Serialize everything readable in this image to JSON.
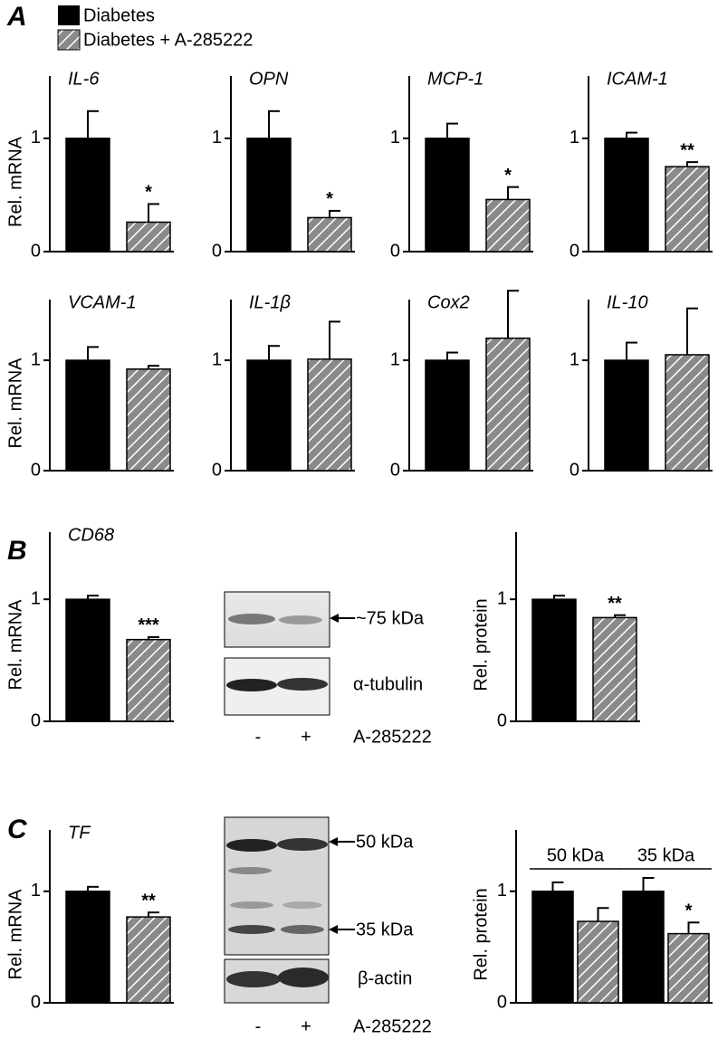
{
  "panel_labels": [
    "A",
    "B",
    "C"
  ],
  "legend": {
    "series": [
      {
        "name": "Diabetes",
        "color": "#000000",
        "hatch": false
      },
      {
        "name": "Diabetes + A-285222",
        "color": "#8a8a8a",
        "hatch": true
      }
    ]
  },
  "blots": [
    {
      "bands": [
        "~75 kDa"
      ],
      "loading": "α-tubulin",
      "lanes": [
        "-",
        "+"
      ],
      "treatment": "A-285222"
    },
    {
      "bands": [
        "50 kDa",
        "35 kDa"
      ],
      "loading": "β-actin",
      "lanes": [
        "-",
        "+"
      ],
      "treatment": "A-285222"
    }
  ],
  "chart_data": [
    {
      "type": "bar",
      "title": "IL-6",
      "ylabel": "Rel. mRNA",
      "values": [
        1,
        0.26
      ],
      "errors": [
        0.24,
        0.16
      ],
      "significance": [
        null,
        "*"
      ],
      "ylim": [
        0,
        1.55
      ],
      "yticks": [
        0,
        1
      ]
    },
    {
      "type": "bar",
      "title": "OPN",
      "values": [
        1,
        0.3
      ],
      "errors": [
        0.24,
        0.06
      ],
      "significance": [
        null,
        "*"
      ],
      "ylim": [
        0,
        1.55
      ],
      "yticks": [
        0,
        1
      ]
    },
    {
      "type": "bar",
      "title": "MCP-1",
      "values": [
        1,
        0.46
      ],
      "errors": [
        0.13,
        0.11
      ],
      "significance": [
        null,
        "*"
      ],
      "ylim": [
        0,
        1.55
      ],
      "yticks": [
        0,
        1
      ]
    },
    {
      "type": "bar",
      "title": "ICAM-1",
      "values": [
        1,
        0.75
      ],
      "errors": [
        0.05,
        0.04
      ],
      "significance": [
        null,
        "**"
      ],
      "ylim": [
        0,
        1.55
      ],
      "yticks": [
        0,
        1
      ]
    },
    {
      "type": "bar",
      "title": "VCAM-1",
      "ylabel": "Rel. mRNA",
      "values": [
        1,
        0.92
      ],
      "errors": [
        0.12,
        0.03
      ],
      "significance": [
        null,
        null
      ],
      "ylim": [
        0,
        1.55
      ],
      "yticks": [
        0,
        1
      ]
    },
    {
      "type": "bar",
      "title": "IL-1β",
      "values": [
        1,
        1.01
      ],
      "errors": [
        0.13,
        0.34
      ],
      "significance": [
        null,
        null
      ],
      "ylim": [
        0,
        1.55
      ],
      "yticks": [
        0,
        1
      ]
    },
    {
      "type": "bar",
      "title": "Cox2",
      "values": [
        1,
        1.2
      ],
      "errors": [
        0.07,
        0.43
      ],
      "significance": [
        null,
        null
      ],
      "ylim": [
        0,
        1.55
      ],
      "yticks": [
        0,
        1
      ]
    },
    {
      "type": "bar",
      "title": "IL-10",
      "values": [
        1,
        1.05
      ],
      "errors": [
        0.16,
        0.42
      ],
      "significance": [
        null,
        null
      ],
      "ylim": [
        0,
        1.55
      ],
      "yticks": [
        0,
        1
      ]
    },
    {
      "type": "bar",
      "title": "CD68",
      "ylabel": "Rel. mRNA",
      "values": [
        1,
        0.67
      ],
      "errors": [
        0.03,
        0.02
      ],
      "significance": [
        null,
        "***"
      ],
      "ylim": [
        0,
        1.55
      ],
      "yticks": [
        0,
        1
      ]
    },
    {
      "type": "bar",
      "ylabel": "Rel. protein",
      "values": [
        1,
        0.85
      ],
      "errors": [
        0.03,
        0.02
      ],
      "significance": [
        null,
        "**"
      ],
      "ylim": [
        0,
        1.55
      ],
      "yticks": [
        0,
        1
      ]
    },
    {
      "type": "bar",
      "title": "TF",
      "ylabel": "Rel. mRNA",
      "values": [
        1,
        0.77
      ],
      "errors": [
        0.04,
        0.04
      ],
      "significance": [
        null,
        "**"
      ],
      "ylim": [
        0,
        1.55
      ],
      "yticks": [
        0,
        1
      ]
    },
    {
      "type": "bar",
      "ylabel": "Rel. protein",
      "groups": [
        "50 kDa",
        "35 kDa"
      ],
      "values": [
        1,
        0.73,
        1,
        0.62
      ],
      "errors": [
        0.08,
        0.12,
        0.12,
        0.1
      ],
      "significance": [
        null,
        null,
        null,
        "*"
      ],
      "ylim": [
        0,
        1.55
      ],
      "yticks": [
        0,
        1
      ]
    }
  ]
}
